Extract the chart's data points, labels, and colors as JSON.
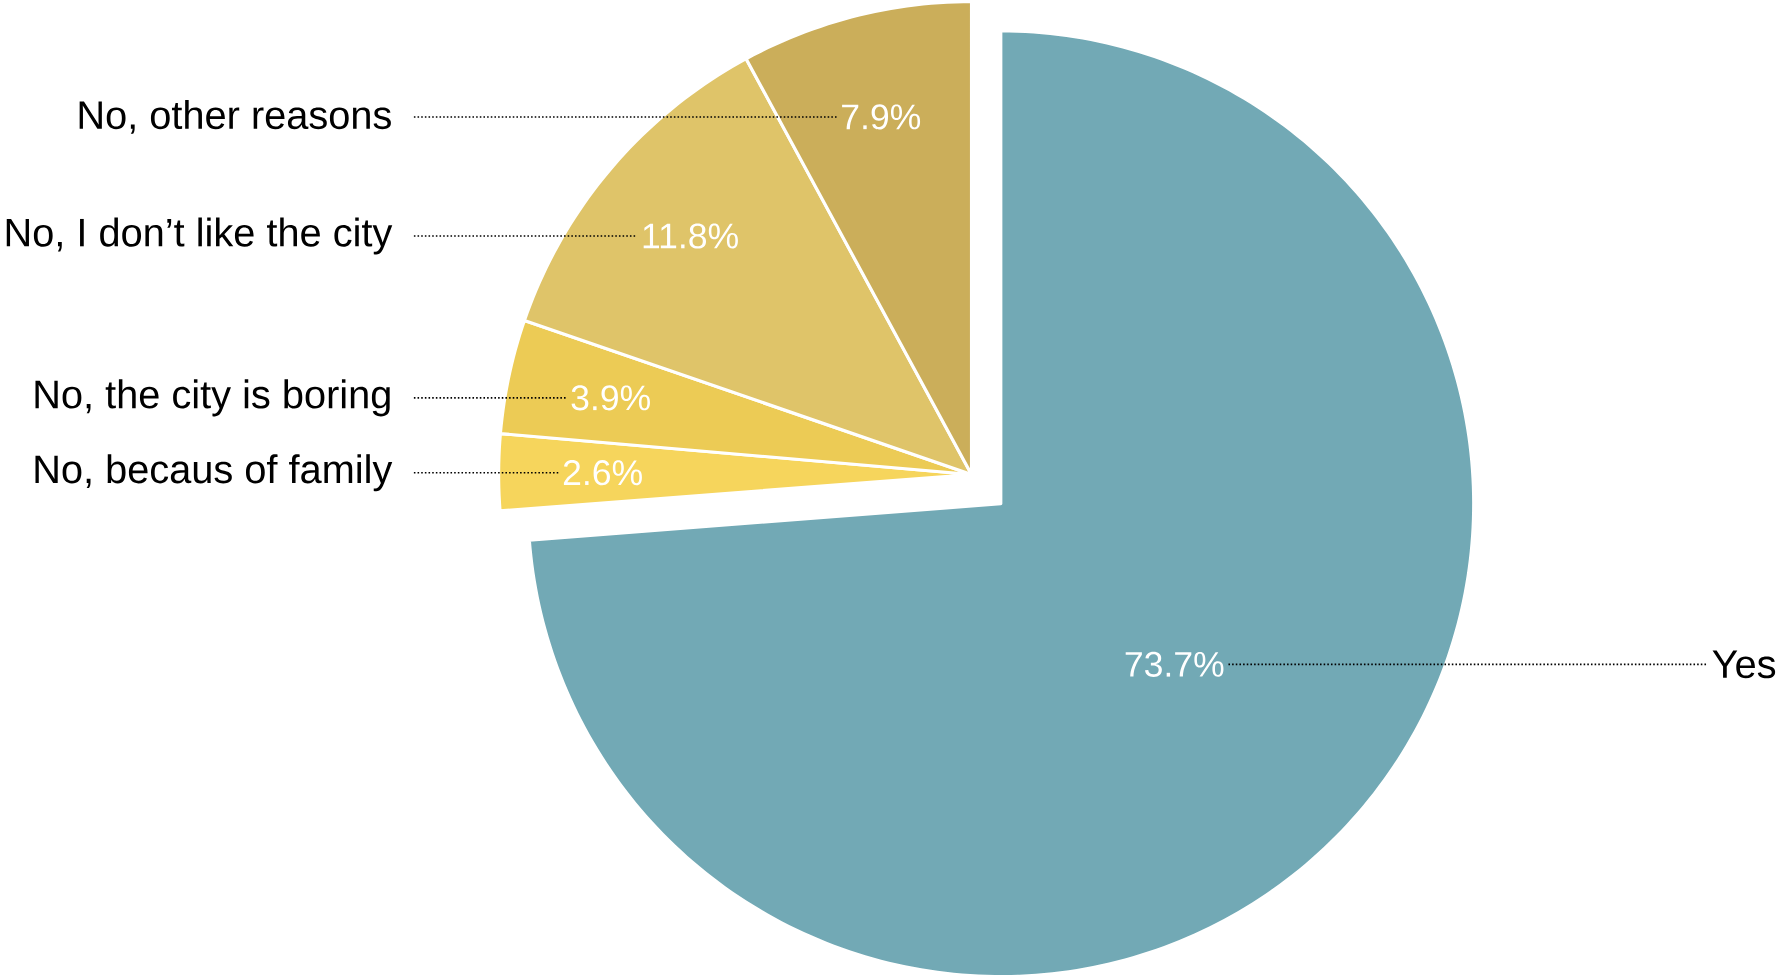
{
  "chart_data": {
    "type": "pie",
    "categories": [
      "Yes",
      "No, becaus of family",
      "No, the city is boring",
      "No, I don’t like the city",
      "No, other reasons"
    ],
    "values": [
      73.7,
      2.6,
      3.9,
      11.8,
      7.9
    ],
    "colors": [
      "#72a9b5",
      "#f6d55c",
      "#eccb55",
      "#dfc469",
      "#cbae5a"
    ],
    "value_labels": [
      "73.7%",
      "2.6%",
      "3.9%",
      "11.8%",
      "7.9%"
    ]
  }
}
